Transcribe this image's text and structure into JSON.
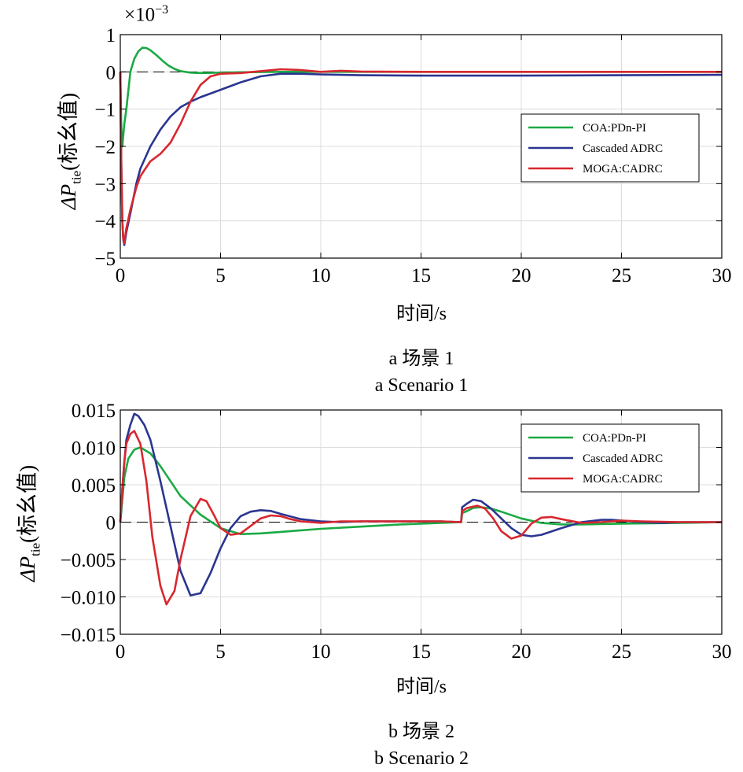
{
  "chart_data": [
    {
      "type": "line",
      "caption_cn": "a 场景 1",
      "caption_en": "a Scenario 1",
      "xlabel": "时间/s",
      "ylabel_main": "ΔP",
      "ylabel_sub": "tie",
      "ylabel_rest": "(标幺值)",
      "y_multiplier": "×10",
      "y_multiplier_exp": "−3",
      "xlim": [
        0,
        30
      ],
      "ylim": [
        -5,
        1
      ],
      "xticks": [
        0,
        5,
        10,
        15,
        20,
        25,
        30
      ],
      "yticks": [
        1,
        0,
        -1,
        -2,
        -3,
        -4,
        -5
      ],
      "ytick_labels": [
        "1",
        "0",
        "−1",
        "−2",
        "−3",
        "−4",
        "−5"
      ],
      "grid": true,
      "legend_position": "center-right",
      "series": [
        {
          "name": "COA:PDn-PI",
          "color": "#1aaa44",
          "x": [
            0,
            0.05,
            0.1,
            0.2,
            0.3,
            0.5,
            0.7,
            0.9,
            1.1,
            1.3,
            1.5,
            1.8,
            2.1,
            2.4,
            2.7,
            3.0,
            3.5,
            4.0,
            5.0,
            6.0,
            8.0,
            10,
            15,
            20,
            25,
            30
          ],
          "y": [
            0,
            -1.5,
            -2.0,
            -1.4,
            -1.0,
            0.0,
            0.35,
            0.55,
            0.65,
            0.64,
            0.58,
            0.45,
            0.3,
            0.17,
            0.08,
            0.02,
            -0.02,
            -0.03,
            -0.02,
            -0.01,
            0.0,
            0.0,
            0.0,
            0.0,
            0.0,
            0.0
          ]
        },
        {
          "name": "Cascaded ADRC",
          "color": "#2b3590",
          "x": [
            0,
            0.05,
            0.1,
            0.15,
            0.2,
            0.3,
            0.5,
            0.8,
            1.0,
            1.5,
            2.0,
            2.5,
            3.0,
            3.5,
            4.0,
            5.0,
            6.0,
            7.0,
            8.0,
            9.0,
            10,
            12,
            15,
            20,
            25,
            30
          ],
          "y": [
            0,
            -2.5,
            -4.0,
            -4.5,
            -4.65,
            -4.3,
            -3.8,
            -3.0,
            -2.6,
            -2.0,
            -1.55,
            -1.2,
            -0.95,
            -0.8,
            -0.68,
            -0.48,
            -0.28,
            -0.12,
            -0.05,
            -0.05,
            -0.07,
            -0.09,
            -0.1,
            -0.1,
            -0.09,
            -0.08
          ]
        },
        {
          "name": "MOGA:CADRC",
          "color": "#d9272e",
          "x": [
            0,
            0.05,
            0.1,
            0.15,
            0.2,
            0.3,
            0.5,
            0.8,
            1.0,
            1.5,
            2.0,
            2.5,
            3.0,
            3.5,
            4.0,
            4.5,
            5.0,
            6.0,
            7.0,
            8.0,
            9.0,
            10,
            11,
            12,
            15,
            20,
            30
          ],
          "y": [
            0,
            -2.5,
            -4.0,
            -4.5,
            -4.6,
            -4.2,
            -3.7,
            -3.1,
            -2.8,
            -2.4,
            -2.2,
            -1.9,
            -1.4,
            -0.8,
            -0.35,
            -0.12,
            -0.05,
            -0.03,
            0.02,
            0.07,
            0.05,
            0.0,
            0.03,
            0.01,
            0.0,
            0.0,
            0.0
          ]
        }
      ]
    },
    {
      "type": "line",
      "caption_cn": "b 场景 2",
      "caption_en": "b Scenario 2",
      "xlabel": "时间/s",
      "ylabel_main": "ΔP",
      "ylabel_sub": "tie",
      "ylabel_rest": "(标幺值)",
      "xlim": [
        0,
        30
      ],
      "ylim": [
        -0.015,
        0.015
      ],
      "xticks": [
        0,
        5,
        10,
        15,
        20,
        25,
        30
      ],
      "yticks": [
        0.015,
        0.01,
        0.005,
        0,
        -0.005,
        -0.01,
        -0.015
      ],
      "ytick_labels": [
        "0.015",
        "0.010",
        "0.005",
        "0",
        "−0.005",
        "−0.010",
        "−0.015"
      ],
      "grid": true,
      "legend_position": "top-right",
      "series": [
        {
          "name": "COA:PDn-PI",
          "color": "#1aaa44",
          "x": [
            0,
            0.1,
            0.2,
            0.4,
            0.7,
            1.0,
            1.5,
            2.0,
            2.5,
            3.0,
            4.0,
            5.0,
            6.0,
            7.0,
            8.0,
            10,
            12,
            14,
            16,
            17.0,
            17.05,
            17.3,
            17.6,
            18.0,
            18.5,
            19,
            20,
            21,
            22,
            23,
            25,
            28,
            30
          ],
          "y": [
            0,
            0.003,
            0.006,
            0.0085,
            0.0097,
            0.01,
            0.0092,
            0.0075,
            0.0055,
            0.0035,
            0.001,
            -0.0008,
            -0.0016,
            -0.0015,
            -0.0013,
            -0.0009,
            -0.0006,
            -0.0003,
            -0.0001,
            0.0,
            0.0012,
            0.0015,
            0.0019,
            0.002,
            0.0018,
            0.0014,
            0.0005,
            -0.0001,
            -0.0003,
            -0.0003,
            -0.0002,
            -0.0001,
            0.0
          ]
        },
        {
          "name": "Cascaded ADRC",
          "color": "#2b3590",
          "x": [
            0,
            0.1,
            0.2,
            0.3,
            0.5,
            0.7,
            0.9,
            1.2,
            1.5,
            2.0,
            2.5,
            3.0,
            3.5,
            4.0,
            4.5,
            5.0,
            5.5,
            6.0,
            6.5,
            7.0,
            7.5,
            8.0,
            9.0,
            10,
            11,
            12,
            14,
            16,
            17.0,
            17.05,
            17.3,
            17.6,
            18.0,
            18.5,
            19,
            19.5,
            20,
            20.5,
            21,
            22,
            23,
            24,
            24.5,
            25,
            26,
            27,
            28,
            30
          ],
          "y": [
            0,
            0.0045,
            0.008,
            0.011,
            0.013,
            0.0145,
            0.0142,
            0.013,
            0.011,
            0.0055,
            -0.0005,
            -0.0065,
            -0.0098,
            -0.0095,
            -0.0068,
            -0.0035,
            -0.0008,
            0.0008,
            0.0014,
            0.0016,
            0.0015,
            0.0011,
            0.0004,
            0.0001,
            0.0,
            0.0001,
            0.0001,
            0.0001,
            0.0,
            0.002,
            0.0025,
            0.003,
            0.0028,
            0.0018,
            0.0005,
            -0.0008,
            -0.0017,
            -0.0019,
            -0.0017,
            -0.0008,
            0.0,
            0.0003,
            0.0003,
            0.0002,
            0.0,
            -0.0001,
            0.0,
            0.0
          ]
        },
        {
          "name": "MOGA:CADRC",
          "color": "#d9272e",
          "x": [
            0,
            0.1,
            0.2,
            0.3,
            0.5,
            0.7,
            1.0,
            1.3,
            1.6,
            2.0,
            2.3,
            2.7,
            3.0,
            3.5,
            4.0,
            4.3,
            4.7,
            5.0,
            5.5,
            6.0,
            6.5,
            7.0,
            7.5,
            8.0,
            8.5,
            9.0,
            10,
            11,
            12,
            14,
            16,
            17.0,
            17.05,
            17.3,
            17.8,
            18.2,
            18.6,
            19.0,
            19.5,
            20,
            20.5,
            21.0,
            21.5,
            22,
            23,
            24,
            25,
            26,
            28,
            30
          ],
          "y": [
            0,
            0.0045,
            0.008,
            0.0105,
            0.0118,
            0.0122,
            0.0105,
            0.0055,
            -0.002,
            -0.0085,
            -0.011,
            -0.0092,
            -0.005,
            0.0008,
            0.0031,
            0.0028,
            0.0008,
            -0.0008,
            -0.0017,
            -0.0015,
            -0.0005,
            0.0005,
            0.0009,
            0.0008,
            0.0004,
            0.0001,
            -0.0001,
            0.0001,
            0.0001,
            0.0001,
            0.0001,
            0.0,
            0.0015,
            0.0019,
            0.0022,
            0.0018,
            0.0005,
            -0.0012,
            -0.0022,
            -0.0018,
            -0.0002,
            0.0006,
            0.0007,
            0.0004,
            -0.0001,
            0.0,
            0.0002,
            0.0001,
            0.0,
            0.0
          ]
        }
      ]
    }
  ]
}
